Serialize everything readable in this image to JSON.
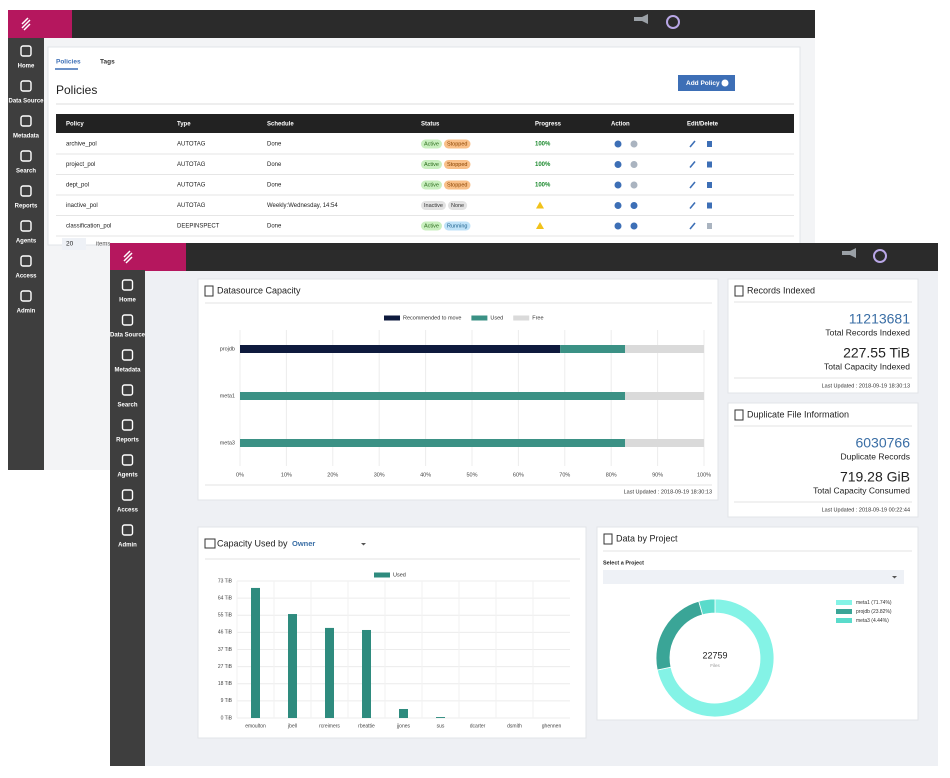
{
  "back_window": {
    "sidebar": [
      "Home",
      "Data Source",
      "Metadata",
      "Search",
      "Reports",
      "Agents",
      "Access",
      "Admin"
    ],
    "tabs": [
      "Policies",
      "Tags"
    ],
    "title": "Policies",
    "add_button": "Add Policy",
    "table": {
      "columns": [
        "Policy",
        "Type",
        "Schedule",
        "Status",
        "Progress",
        "Action",
        "Edit/Delete"
      ],
      "rows": [
        [
          "archive_pol",
          "AUTOTAG",
          "Done",
          [
            "Active",
            "Stopped"
          ],
          "100%"
        ],
        [
          "project_pol",
          "AUTOTAG",
          "Done",
          [
            "Active",
            "Stopped"
          ],
          "100%"
        ],
        [
          "dept_pol",
          "AUTOTAG",
          "Done",
          [
            "Active",
            "Stopped"
          ],
          "100%"
        ],
        [
          "inactive_pol",
          "AUTOTAG",
          "Weekly:Wednesday, 14:54",
          [
            "Inactive",
            "None"
          ],
          null
        ],
        [
          "classification_pol",
          "DEEPINSPECT",
          "Done",
          [
            "Active",
            "Running"
          ],
          null
        ]
      ]
    },
    "page_size": "20",
    "page_label": "items"
  },
  "front_window": {
    "sidebar": [
      "Home",
      "Data Source",
      "Metadata",
      "Search",
      "Reports",
      "Agents",
      "Access",
      "Admin"
    ]
  },
  "records_indexed": {
    "title": "Records Indexed",
    "value": 11213681,
    "value_caption": "Total Records Indexed",
    "capacity": "227.55 TiB",
    "capacity_caption": "Total Capacity Indexed",
    "updated": "Last Updated : 2018-09-19 18:30:13"
  },
  "duplicates": {
    "title": "Duplicate File Information",
    "value": 6030766,
    "value_caption": "Duplicate Records",
    "capacity": "719.28 GiB",
    "capacity_caption": "Total Capacity Consumed",
    "updated": "Last Updated : 2018-09-19 00:22:44"
  },
  "chart_data": [
    {
      "type": "hbar",
      "title": "Datasource Capacity",
      "categories": [
        "projdb",
        "meta1",
        "meta3"
      ],
      "series": [
        {
          "name": "Recommended to move",
          "color": "#0e1a3d",
          "values": [
            69,
            0,
            0
          ]
        },
        {
          "name": "Used",
          "color": "#3b9185",
          "values": [
            14,
            83,
            83
          ]
        },
        {
          "name": "Free",
          "color": "#dadada",
          "values": [
            17,
            17,
            17
          ]
        }
      ],
      "xlim": [
        0,
        100
      ],
      "xticks": [
        {
          "value": 0,
          "label": "0%"
        },
        {
          "value": 10,
          "label": "10%"
        },
        {
          "value": 20,
          "label": "20%"
        },
        {
          "value": 30,
          "label": "30%"
        },
        {
          "value": 40,
          "label": "40%"
        },
        {
          "value": 50,
          "label": "50%"
        },
        {
          "value": 60,
          "label": "60%"
        },
        {
          "value": 70,
          "label": "70%"
        },
        {
          "value": 80,
          "label": "80%"
        },
        {
          "value": 90,
          "label": "90%"
        },
        {
          "value": 100,
          "label": "100%"
        }
      ],
      "grid": true,
      "footer": "Last Updated : 2018-09-19 18:30:13"
    },
    {
      "type": "bar",
      "title": "Capacity Used by",
      "selector": "Owner",
      "categories": [
        "emoulton",
        "jbell",
        "rcreimers",
        "rbeattie",
        "jjones",
        "sus",
        "dcarter",
        "dsmith",
        "ghennen"
      ],
      "series": [
        {
          "name": "Used",
          "color": "#2e8b7e",
          "values": [
            69.3,
            55.4,
            48,
            46.9,
            4.8,
            0.5,
            0,
            0,
            0
          ]
        }
      ],
      "ylim": [
        0,
        73
      ],
      "yticks": [
        {
          "value": 0,
          "label": "0 TiB"
        },
        {
          "value": 9.125,
          "label": "9 TiB"
        },
        {
          "value": 18.25,
          "label": "18 TiB"
        },
        {
          "value": 27.375,
          "label": "27 TiB"
        },
        {
          "value": 36.5,
          "label": "37 TiB"
        },
        {
          "value": 45.625,
          "label": "46 TiB"
        },
        {
          "value": 54.75,
          "label": "55 TiB"
        },
        {
          "value": 63.875,
          "label": "64 TiB"
        },
        {
          "value": 73,
          "label": "73 TiB"
        }
      ],
      "grid": true
    },
    {
      "type": "pie",
      "title": "Data by Project",
      "select_label": "Select a Project",
      "categories": [
        "meta1",
        "projdb",
        "meta3"
      ],
      "values": [
        71.74,
        23.82,
        4.44
      ],
      "legend_labels": [
        "meta1 (71.74%)",
        "projdb (23.82%)",
        "meta3 (4.44%)"
      ],
      "colors": [
        "#84f3e6",
        "#3aa597",
        "#5adbcb"
      ],
      "center_value": 22759,
      "center_label": "Files"
    }
  ]
}
